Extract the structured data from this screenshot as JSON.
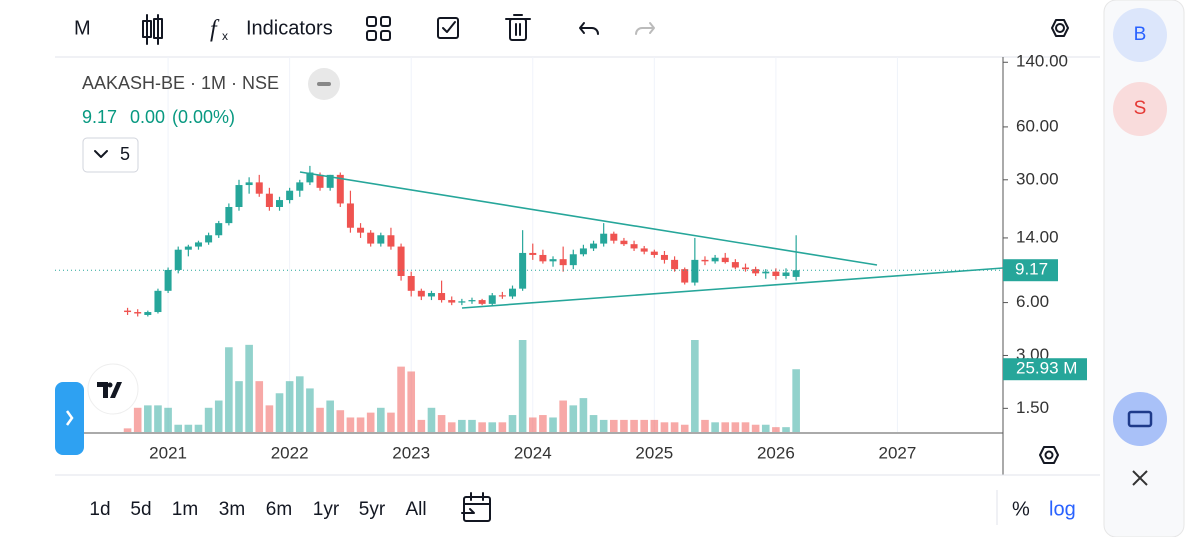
{
  "toolbar": {
    "interval": "M",
    "indicators": "Indicators"
  },
  "chart_data": {
    "type": "candlestick",
    "title": "AAKASH-BE · 1M · NSE",
    "change": "0.00",
    "change_pct": "(0.00%)",
    "indicator_count": 5,
    "categories": [
      null,
      null,
      null,
      null,
      "2021",
      null,
      null,
      null,
      null,
      null,
      null,
      null,
      null,
      null,
      null,
      null,
      "2022",
      null,
      null,
      null,
      null,
      null,
      null,
      null,
      null,
      null,
      null,
      null,
      "2023",
      null,
      null,
      null,
      null,
      null,
      null,
      null,
      null,
      null,
      null,
      null,
      "2024",
      null,
      null,
      null,
      null,
      null,
      null,
      null,
      null,
      null,
      null,
      null,
      "2025",
      null,
      null,
      null,
      null,
      null,
      null,
      null,
      null,
      null,
      null,
      null,
      "2026",
      null,
      null,
      null,
      null,
      null,
      null,
      null,
      null,
      null,
      null,
      null,
      "2027"
    ],
    "open": [
      5.4,
      5.3,
      5.1,
      5.3,
      7.0,
      9.2,
      12.0,
      12.5,
      13.2,
      14.5,
      17.0,
      21,
      28,
      29,
      25,
      21,
      23,
      26,
      29,
      32,
      27,
      32,
      22,
      16,
      15,
      13,
      14.5,
      12.5,
      8.5,
      7,
      6.5,
      6.8,
      6.2,
      6,
      6.1,
      6.2,
      5.9,
      6.6,
      6.5,
      7.2,
      11.5,
      11.2,
      10.3,
      10.6,
      9.8,
      11.3,
      12.2,
      13,
      14.8,
      13.5,
      12.9,
      12.2,
      11.7,
      11.2,
      10.5,
      9.3,
      7.8,
      10.5,
      10.3,
      10.8,
      10.2,
      9.5,
      9.3,
      8.8,
      9.0,
      8.5,
      8.4,
      null,
      null,
      null,
      null,
      null,
      null,
      null,
      null,
      null,
      null
    ],
    "high": [
      5.6,
      5.5,
      5.4,
      7.2,
      9.5,
      12.5,
      12.8,
      13.5,
      15.0,
      17.5,
      22,
      30,
      31,
      32,
      27,
      24,
      27,
      30,
      36,
      33,
      32,
      33,
      26,
      17,
      15.5,
      15,
      16,
      13,
      9,
      7.2,
      7,
      8,
      6.5,
      6.3,
      6.4,
      6.3,
      6.8,
      6.9,
      7.5,
      15.5,
      13,
      12,
      11,
      12.5,
      12,
      12.8,
      13.5,
      17,
      15.2,
      14,
      13.5,
      12.6,
      12,
      11.8,
      11,
      9.5,
      14,
      11,
      11.2,
      11.5,
      10.6,
      10,
      9.6,
      9.3,
      9.4,
      9.4,
      14.5,
      null,
      null,
      null,
      null,
      null,
      null,
      null,
      null,
      null,
      null
    ],
    "low": [
      5.1,
      5.0,
      5.0,
      5.2,
      6.8,
      8.8,
      11.0,
      12.0,
      12.8,
      14.0,
      16.5,
      20,
      25,
      24,
      20,
      20,
      22,
      24,
      28,
      26,
      26,
      21,
      15,
      14,
      12.5,
      12.5,
      12,
      8,
      6.5,
      6.2,
      6.2,
      6,
      5.8,
      5.8,
      5.9,
      5.8,
      5.8,
      6.3,
      6.3,
      7.0,
      10.5,
      10,
      9.6,
      9,
      9.3,
      11,
      11.8,
      12.5,
      13,
      12.6,
      11.8,
      11.3,
      10.8,
      10,
      9,
      7.6,
      7.5,
      9.8,
      10,
      10,
      9.3,
      9,
      8.5,
      8.2,
      8.1,
      8.2,
      8.0,
      null,
      null,
      null,
      null,
      null,
      null,
      null,
      null,
      null,
      null
    ],
    "close": [
      5.3,
      5.2,
      5.3,
      7.0,
      9.2,
      12.0,
      12.5,
      13.2,
      14.5,
      17.0,
      21,
      28,
      29,
      25,
      21,
      23,
      26,
      29,
      33,
      27,
      32,
      22,
      16,
      15,
      13,
      14.5,
      12.5,
      8.5,
      7,
      6.5,
      6.8,
      6.2,
      6,
      6.1,
      6.2,
      5.9,
      6.6,
      6.5,
      7.2,
      11.5,
      11.2,
      10.3,
      10.6,
      9.8,
      11.3,
      12.2,
      13,
      14.8,
      13.5,
      12.9,
      12.2,
      11.7,
      11.2,
      10.5,
      9.3,
      7.8,
      10.5,
      10.3,
      10.8,
      10.2,
      9.5,
      9.3,
      8.8,
      9.0,
      8.5,
      8.9,
      9.17,
      null,
      null,
      null,
      null,
      null,
      null,
      null,
      null,
      null,
      null
    ],
    "up_color": "#26a69a",
    "down_color": "#ef5350",
    "volume": {
      "values": [
        1.5,
        10,
        11,
        11,
        10,
        3,
        3,
        3,
        10,
        13,
        35,
        21,
        36,
        21,
        11,
        16,
        21,
        23,
        18,
        10,
        13,
        9,
        6,
        6,
        8,
        10,
        8,
        27,
        25,
        5,
        10,
        7,
        4,
        5,
        5,
        4,
        4,
        4,
        7,
        38,
        6,
        7,
        6,
        13,
        11,
        14,
        7,
        5,
        5,
        5,
        5,
        5,
        5,
        4,
        4,
        3,
        38,
        5,
        4,
        4,
        4,
        4,
        3,
        3,
        2,
        2,
        25.93,
        null,
        null,
        null,
        null,
        null,
        null,
        null,
        null,
        null,
        null
      ],
      "last_label": "25.93 M"
    },
    "log_scale": true,
    "ylim": [
      1.1,
      150
    ],
    "yticks": [
      {
        "value": 1.5,
        "label": "1.50"
      },
      {
        "value": 3,
        "label": "3.00"
      },
      {
        "value": 6,
        "label": "6.00"
      },
      {
        "value": 14,
        "label": "14.00"
      },
      {
        "value": 30,
        "label": "30.00"
      },
      {
        "value": 60,
        "label": "60.00"
      },
      {
        "value": 140,
        "label": "140.00"
      }
    ],
    "last_price": 9.17,
    "grid": true
  },
  "timeframes": [
    "1d",
    "5d",
    "1m",
    "3m",
    "6m",
    "1yr",
    "5yr",
    "All"
  ],
  "scale_buttons": {
    "percent": "%",
    "log": "log"
  },
  "side_panel": {
    "buy": "B",
    "sell": "S"
  }
}
